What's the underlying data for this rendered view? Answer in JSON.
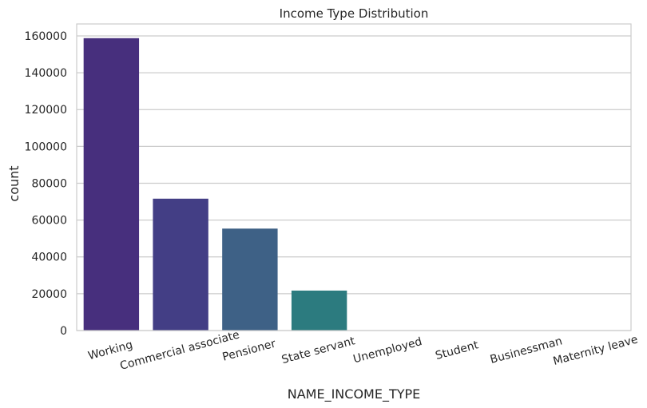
{
  "chart_data": {
    "type": "bar",
    "title": "Income Type Distribution",
    "xlabel": "NAME_INCOME_TYPE",
    "ylabel": "count",
    "categories": [
      "Working",
      "Commercial associate",
      "Pensioner",
      "State servant",
      "Unemployed",
      "Student",
      "Businessman",
      "Maternity leave"
    ],
    "values": [
      158774,
      71617,
      55362,
      21703,
      22,
      18,
      10,
      5
    ],
    "ylim": [
      0,
      166500
    ],
    "yticks": [
      0,
      20000,
      40000,
      60000,
      80000,
      100000,
      120000,
      140000,
      160000
    ],
    "colors": [
      "#472f7d",
      "#433e85",
      "#3e6186",
      "#2c7b7f",
      "#25858e",
      "#1e9b8a",
      "#3fbc73",
      "#62cb5f"
    ],
    "grid": true,
    "legend": "none"
  }
}
